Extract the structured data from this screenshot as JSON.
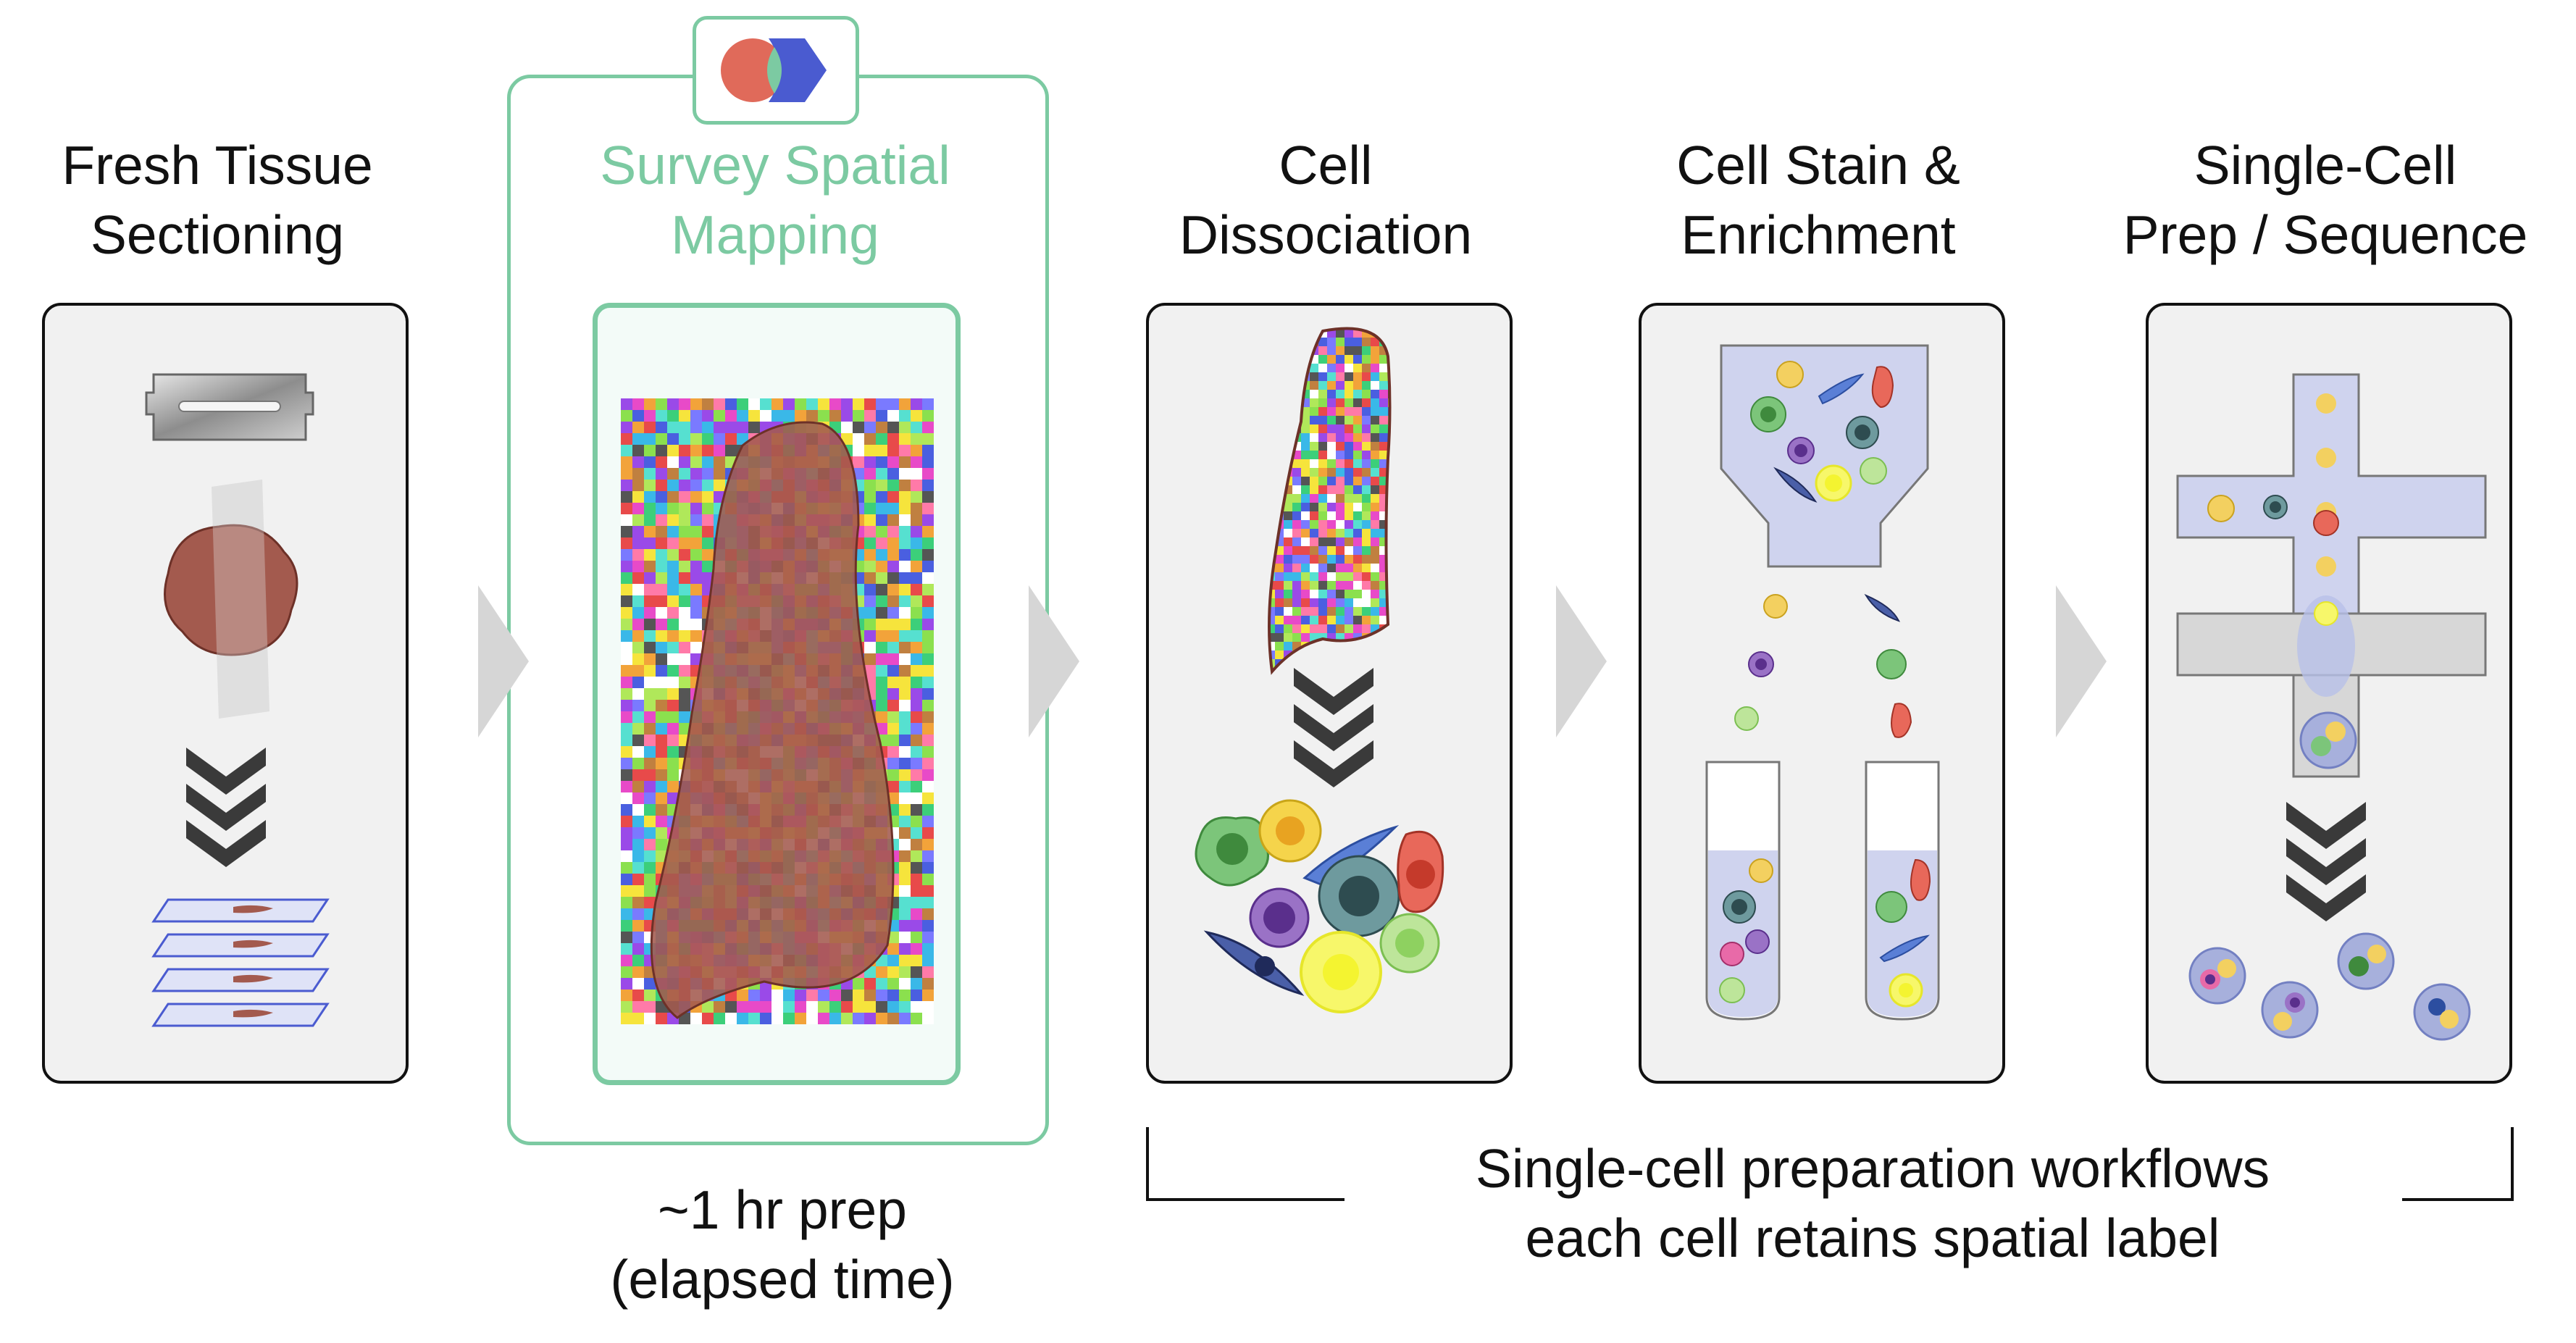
{
  "steps": [
    {
      "line1": "Fresh Tissue",
      "line2": "Sectioning"
    },
    {
      "line1": "Survey Spatial",
      "line2": "Mapping"
    },
    {
      "line1": "Cell",
      "line2": "Dissociation"
    },
    {
      "line1": "Cell Stain &",
      "line2": "Enrichment"
    },
    {
      "line1": "Single-Cell",
      "line2": "Prep / Sequence"
    }
  ],
  "prep_caption": {
    "line1": "~1 hr prep",
    "line2": "(elapsed time)"
  },
  "workflow_caption": {
    "line1": "Single-cell preparation workflows",
    "line2": "each cell retains spatial label"
  },
  "colors": {
    "accent_green": "#7ccaa2",
    "card_bg": "#f1f1f1",
    "tissue": "#a35a4e",
    "logo_red": "#e06a5a",
    "logo_blue": "#4a5bd0",
    "arrow_gray": "#d6d6d6",
    "chevron": "#3a3a3a"
  },
  "icons": [
    "razor-blade-icon",
    "tissue-chunk-icon",
    "chevron-down-icon",
    "slide-stack-icon",
    "spatial-barcode-array-icon",
    "logo-icon",
    "cell-cluster-icon",
    "funnel-icon",
    "test-tube-icon",
    "microfluidic-chip-icon",
    "droplet-icon"
  ]
}
